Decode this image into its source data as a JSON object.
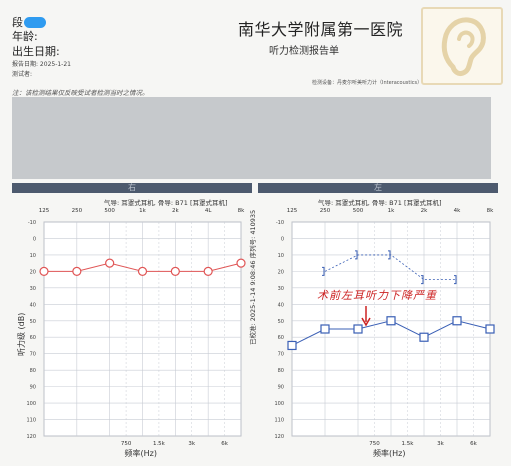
{
  "patient": {
    "name_prefix": "段",
    "age_label": "年龄:",
    "dob_label": "出生日期:",
    "report_date_label": "报告日期: 2025-1-21",
    "tester_label": "测试者:"
  },
  "hospital": {
    "name": "南华大学附属第一医院",
    "report_title": "听力检测报告单"
  },
  "device_info": "检测设备：丹麦尔听美听力计（Interacoustics）",
  "note": "注：该检测结果仅反映受试者检测当时之情况。",
  "panels": {
    "right_label": "右",
    "left_label": "左",
    "right_conduction": "气导: 耳罩式耳机, 骨导: B71 [耳罩式耳机]",
    "left_conduction": "气导: 耳罩式耳机, 骨导: B71 [耳罩式耳机]"
  },
  "annotation": "术前左耳听力下降严重",
  "stamp": "已校准: 2025-1-14 9:08:46 序列号: 410935",
  "colors": {
    "right_ear": "#e05555",
    "left_ear": "#3a5fb5",
    "grid": "#c8ccd4",
    "grid_bg": "#ffffff",
    "annotation": "#cc2222"
  },
  "chart_data": [
    {
      "type": "line",
      "ear": "right",
      "x_top_ticks": [
        "125",
        "250",
        "500",
        "1k",
        "2k",
        "4L",
        "8k"
      ],
      "x_bottom_ticks": [
        "750",
        "1.5k",
        "3k",
        "6k"
      ],
      "xlabel": "频率(Hz)",
      "ylabel": "听力级 (dB)",
      "y_ticks": [
        -10,
        0,
        10,
        20,
        30,
        40,
        50,
        60,
        70,
        80,
        90,
        100,
        110,
        120
      ],
      "ylim": [
        -10,
        120
      ],
      "series": [
        {
          "marker": "circle",
          "x": [
            "125",
            "250",
            "500",
            "1k",
            "2k",
            "4L",
            "8k"
          ],
          "values": [
            20,
            20,
            15,
            20,
            20,
            20,
            15
          ]
        }
      ]
    },
    {
      "type": "line",
      "ear": "left",
      "x_top_ticks": [
        "125",
        "250",
        "500",
        "1k",
        "2k",
        "4k",
        "8k"
      ],
      "x_bottom_ticks": [
        "750",
        "1.5k",
        "3k",
        "6k"
      ],
      "xlabel": "频率(Hz)",
      "ylabel": "听力级 (dB)",
      "y_ticks": [
        -10,
        0,
        10,
        20,
        30,
        40,
        50,
        60,
        70,
        80,
        90,
        100,
        110,
        120
      ],
      "ylim": [
        -10,
        120
      ],
      "series": [
        {
          "marker": "square",
          "x": [
            "125",
            "250",
            "500",
            "1k",
            "2k",
            "4k",
            "8k"
          ],
          "values": [
            65,
            55,
            55,
            50,
            60,
            50,
            55
          ]
        },
        {
          "marker": "bracket",
          "dashed": true,
          "x": [
            "250",
            "500",
            "1k",
            "2k",
            "4k"
          ],
          "values": [
            20,
            10,
            10,
            25,
            25
          ]
        }
      ]
    }
  ]
}
